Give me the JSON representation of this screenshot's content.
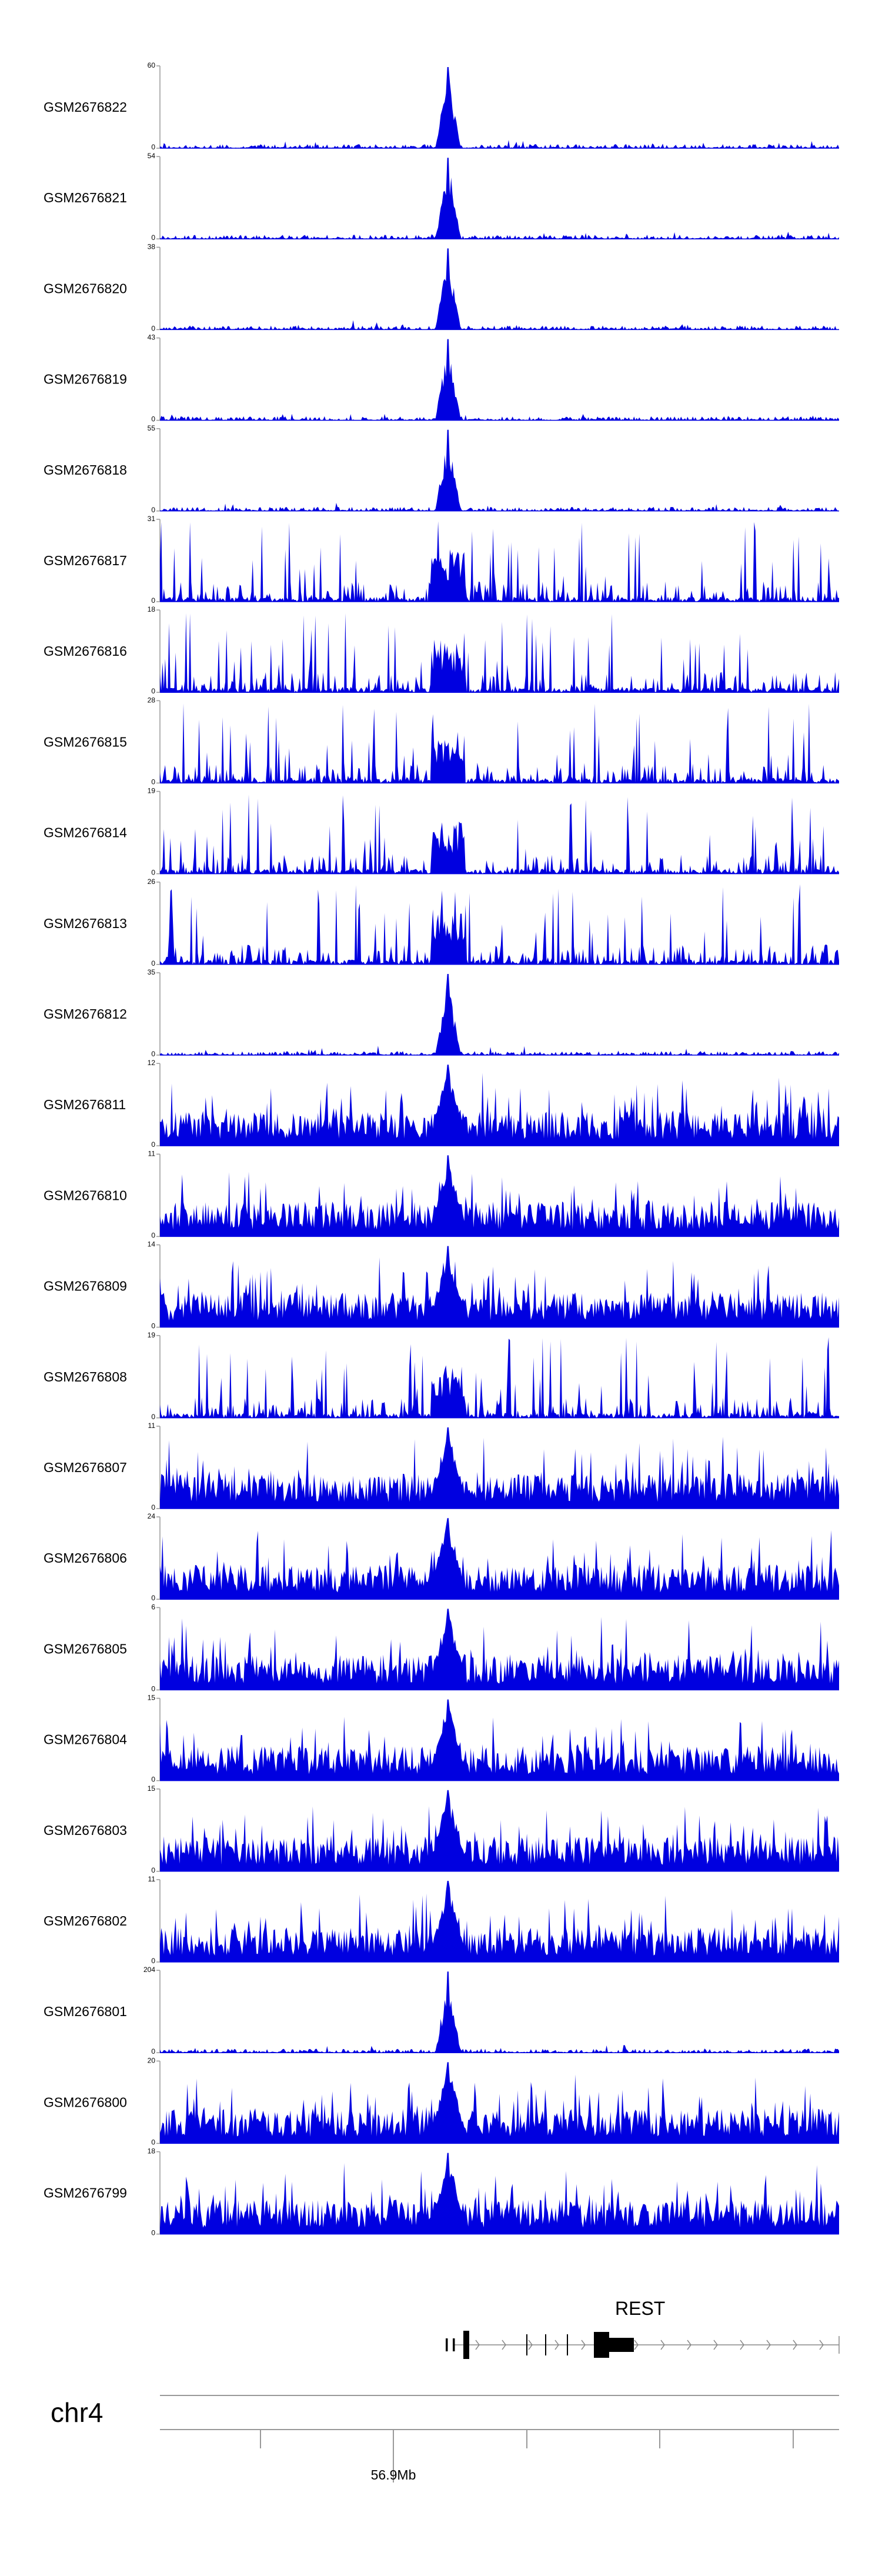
{
  "chart_data": {
    "type": "area",
    "chromosome": "chr4",
    "gene": "REST",
    "coordinate_label": "56.9Mb",
    "fill_color": "#0000e0",
    "series": [
      {
        "name": "GSM2676822",
        "ylim": [
          0,
          60
        ],
        "profile": "peak"
      },
      {
        "name": "GSM2676821",
        "ylim": [
          0,
          54
        ],
        "profile": "peak"
      },
      {
        "name": "GSM2676820",
        "ylim": [
          0,
          38
        ],
        "profile": "peak"
      },
      {
        "name": "GSM2676819",
        "ylim": [
          0,
          43
        ],
        "profile": "peak"
      },
      {
        "name": "GSM2676818",
        "ylim": [
          0,
          55
        ],
        "profile": "peak"
      },
      {
        "name": "GSM2676817",
        "ylim": [
          0,
          31
        ],
        "profile": "sparse"
      },
      {
        "name": "GSM2676816",
        "ylim": [
          0,
          18
        ],
        "profile": "sparse"
      },
      {
        "name": "GSM2676815",
        "ylim": [
          0,
          28
        ],
        "profile": "sparse"
      },
      {
        "name": "GSM2676814",
        "ylim": [
          0,
          19
        ],
        "profile": "sparse"
      },
      {
        "name": "GSM2676813",
        "ylim": [
          0,
          26
        ],
        "profile": "sparse"
      },
      {
        "name": "GSM2676812",
        "ylim": [
          0,
          35
        ],
        "profile": "peak"
      },
      {
        "name": "GSM2676811",
        "ylim": [
          0,
          12
        ],
        "profile": "dense"
      },
      {
        "name": "GSM2676810",
        "ylim": [
          0,
          11
        ],
        "profile": "dense"
      },
      {
        "name": "GSM2676809",
        "ylim": [
          0,
          14
        ],
        "profile": "dense"
      },
      {
        "name": "GSM2676808",
        "ylim": [
          0,
          19
        ],
        "profile": "sparse"
      },
      {
        "name": "GSM2676807",
        "ylim": [
          0,
          11
        ],
        "profile": "dense"
      },
      {
        "name": "GSM2676806",
        "ylim": [
          0,
          24
        ],
        "profile": "dense"
      },
      {
        "name": "GSM2676805",
        "ylim": [
          0,
          6
        ],
        "profile": "dense"
      },
      {
        "name": "GSM2676804",
        "ylim": [
          0,
          15
        ],
        "profile": "dense"
      },
      {
        "name": "GSM2676803",
        "ylim": [
          0,
          15
        ],
        "profile": "dense"
      },
      {
        "name": "GSM2676802",
        "ylim": [
          0,
          11
        ],
        "profile": "dense"
      },
      {
        "name": "GSM2676801",
        "ylim": [
          0,
          204
        ],
        "profile": "peak"
      },
      {
        "name": "GSM2676800",
        "ylim": [
          0,
          20
        ],
        "profile": "dense"
      },
      {
        "name": "GSM2676799",
        "ylim": [
          0,
          18
        ],
        "profile": "dense"
      }
    ]
  }
}
